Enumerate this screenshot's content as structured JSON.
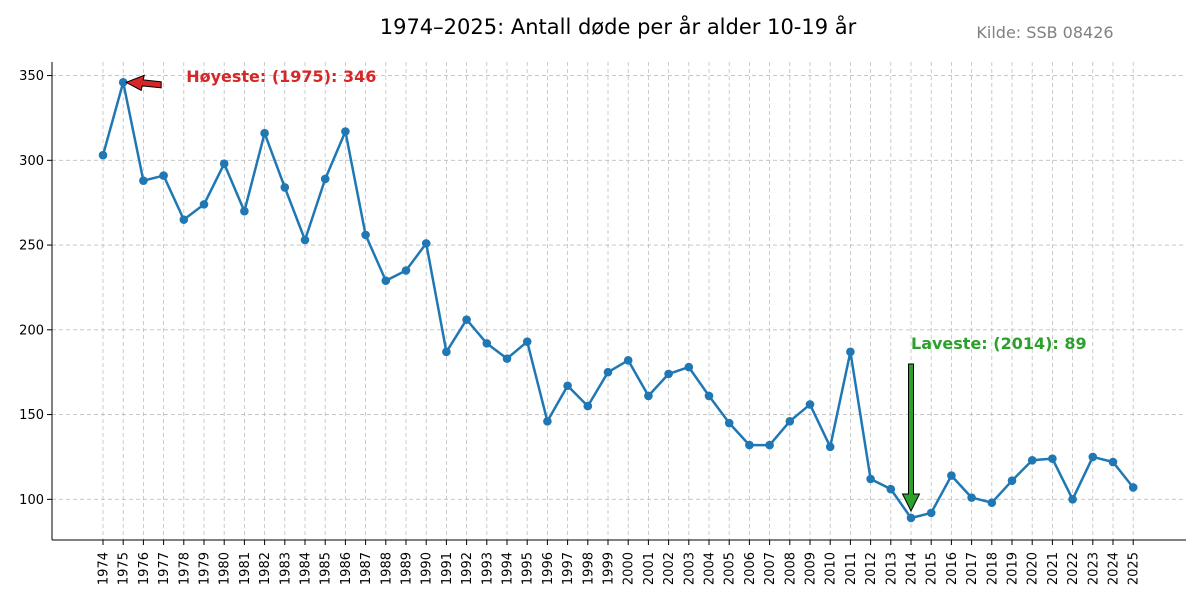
{
  "chart_data": {
    "type": "line",
    "title": "1974–2025: Antall døde per år alder 10-19 år",
    "source": "Kilde: SSB 08426",
    "xlabel": "",
    "ylabel": "",
    "x": [
      1974,
      1975,
      1976,
      1977,
      1978,
      1979,
      1980,
      1981,
      1982,
      1983,
      1984,
      1985,
      1986,
      1987,
      1988,
      1989,
      1990,
      1991,
      1992,
      1993,
      1994,
      1995,
      1996,
      1997,
      1998,
      1999,
      2000,
      2001,
      2002,
      2003,
      2004,
      2005,
      2006,
      2007,
      2008,
      2009,
      2010,
      2011,
      2012,
      2013,
      2014,
      2015,
      2016,
      2017,
      2018,
      2019,
      2020,
      2021,
      2022,
      2023,
      2024,
      2025
    ],
    "values": [
      303,
      346,
      288,
      291,
      265,
      274,
      298,
      270,
      316,
      284,
      253,
      289,
      317,
      256,
      229,
      235,
      251,
      187,
      206,
      192,
      183,
      193,
      146,
      167,
      155,
      175,
      182,
      161,
      174,
      178,
      161,
      145,
      132,
      132,
      146,
      156,
      131,
      187,
      112,
      106,
      89,
      92,
      114,
      101,
      98,
      111,
      123,
      124,
      100,
      125,
      122,
      107
    ],
    "ylim": [
      76,
      358
    ],
    "yticks": [
      100,
      150,
      200,
      250,
      300,
      350
    ],
    "grid": true,
    "line_color": "#1f77b4",
    "annotations": {
      "max": {
        "label": "Høyeste: (1975): 346",
        "year": 1975,
        "value": 346,
        "color": "#d62728"
      },
      "min": {
        "label": "Laveste: (2014): 89",
        "year": 2014,
        "value": 89,
        "color": "#2ca02c"
      }
    }
  }
}
